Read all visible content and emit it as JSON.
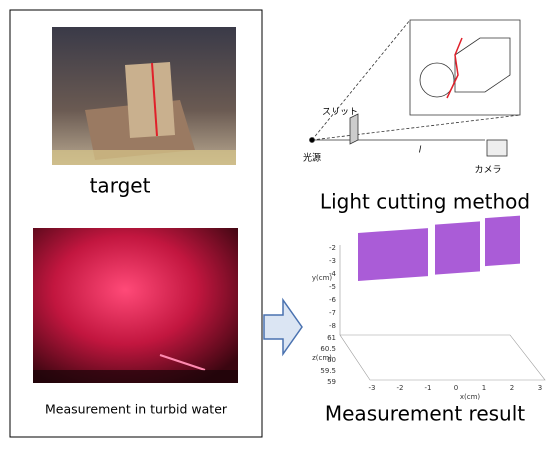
{
  "left_panel": {
    "target_caption": "target",
    "water_caption": "Measurement in turbid water"
  },
  "light_cutting": {
    "title": "Light cutting method",
    "slit_label": "スリット",
    "source_label": "光源",
    "camera_label": "カメラ",
    "distance_label": "l"
  },
  "result": {
    "title": "Measurement result",
    "y_label": "y(cm)",
    "z_label": "z(cm)",
    "x_label": "x(cm)",
    "y_ticks": [
      -2,
      -3,
      -4,
      -5,
      -6,
      -7,
      -8
    ],
    "z_ticks": [
      61,
      60.5,
      60,
      59.5,
      59
    ],
    "x_ticks": [
      -3,
      -2,
      -1,
      0,
      1,
      2,
      3
    ]
  }
}
